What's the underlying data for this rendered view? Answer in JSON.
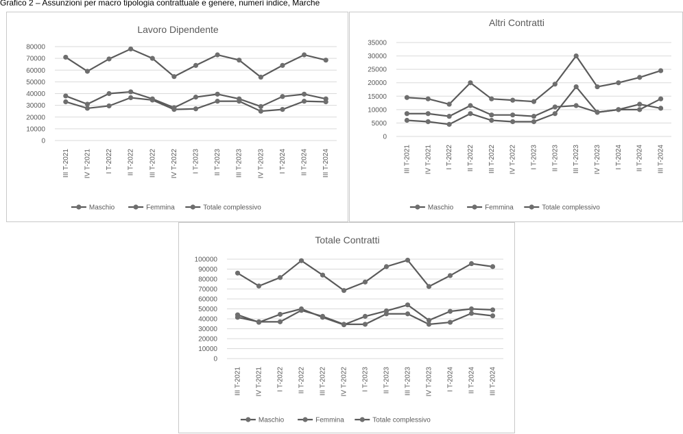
{
  "caption": "Grafico 2 – Assunzioni per macro tipologia contrattuale e genere, numeri indice, Marche",
  "colors": {
    "line": "#5a5a5a",
    "marker": "#6e6e6e",
    "grid": "#d9d9d9",
    "text": "#595959"
  },
  "chart_data": [
    {
      "type": "line",
      "title": "Lavoro Dipendente",
      "categories": [
        "III T-2021",
        "IV T-2021",
        "I T-2022",
        "II T-2022",
        "III T-2022",
        "IV T-2022",
        "I T-2023",
        "II T-2023",
        "III T-2023",
        "IV T-2023",
        "I T-2024",
        "II T-2024",
        "III T-2024"
      ],
      "ylim": [
        0,
        80000
      ],
      "yticks": [
        0,
        10000,
        20000,
        30000,
        40000,
        50000,
        60000,
        70000,
        80000
      ],
      "grid": true,
      "legend_position": "bottom",
      "series": [
        {
          "name": "Maschio",
          "values": [
            38000,
            31000,
            40000,
            41500,
            35500,
            28000,
            37000,
            39500,
            35500,
            29000,
            37500,
            39500,
            35500
          ]
        },
        {
          "name": "Femmina",
          "values": [
            33000,
            27500,
            29500,
            36500,
            34500,
            26500,
            27000,
            33500,
            33500,
            25000,
            26500,
            33500,
            33000
          ]
        },
        {
          "name": "Totale complessivo",
          "values": [
            71000,
            59000,
            69500,
            78000,
            70000,
            54500,
            64000,
            73000,
            68500,
            54000,
            64000,
            73000,
            68500
          ]
        }
      ]
    },
    {
      "type": "line",
      "title": "Altri Contratti",
      "categories": [
        "III T-2021",
        "IV T-2021",
        "I T-2022",
        "II T-2022",
        "III T-2022",
        "IV T-2022",
        "I T-2023",
        "II T-2023",
        "III T-2023",
        "IV T-2023",
        "I T-2024",
        "II T-2024",
        "III T-2024"
      ],
      "ylim": [
        0,
        35000
      ],
      "yticks": [
        0,
        5000,
        10000,
        15000,
        20000,
        25000,
        30000,
        35000
      ],
      "grid": true,
      "legend_position": "bottom",
      "series": [
        {
          "name": "Maschio",
          "values": [
            6000,
            5500,
            4500,
            8500,
            6000,
            5500,
            5500,
            8500,
            18500,
            9000,
            10000,
            10000,
            14000
          ]
        },
        {
          "name": "Femmina",
          "values": [
            8500,
            8500,
            7500,
            11500,
            8000,
            8000,
            7500,
            11000,
            11500,
            9000,
            10000,
            12000,
            10500
          ]
        },
        {
          "name": "Totale complessivo",
          "values": [
            14500,
            14000,
            12000,
            20000,
            14000,
            13500,
            13000,
            19500,
            30000,
            18500,
            20000,
            22000,
            24500
          ]
        }
      ]
    },
    {
      "type": "line",
      "title": "Totale Contratti",
      "categories": [
        "III T-2021",
        "IV T-2021",
        "I T-2022",
        "II T-2022",
        "III T-2022",
        "IV T-2022",
        "I T-2023",
        "II T-2023",
        "III T-2023",
        "IV T-2023",
        "I T-2024",
        "II T-2024",
        "III T-2024"
      ],
      "ylim": [
        0,
        100000
      ],
      "yticks": [
        0,
        10000,
        20000,
        30000,
        40000,
        50000,
        60000,
        70000,
        80000,
        90000,
        100000
      ],
      "grid": true,
      "legend_position": "bottom",
      "series": [
        {
          "name": "Maschio",
          "values": [
            44000,
            36500,
            44500,
            50000,
            41500,
            34000,
            42500,
            48000,
            54000,
            38500,
            47500,
            50000,
            49000
          ]
        },
        {
          "name": "Femmina",
          "values": [
            41500,
            37000,
            37000,
            48500,
            42500,
            34500,
            34500,
            45000,
            45000,
            34500,
            36500,
            45500,
            43000
          ]
        },
        {
          "name": "Totale complessivo",
          "values": [
            86000,
            73000,
            81500,
            98500,
            84000,
            68500,
            77000,
            92500,
            99000,
            72500,
            83500,
            95500,
            92500
          ]
        }
      ]
    }
  ]
}
